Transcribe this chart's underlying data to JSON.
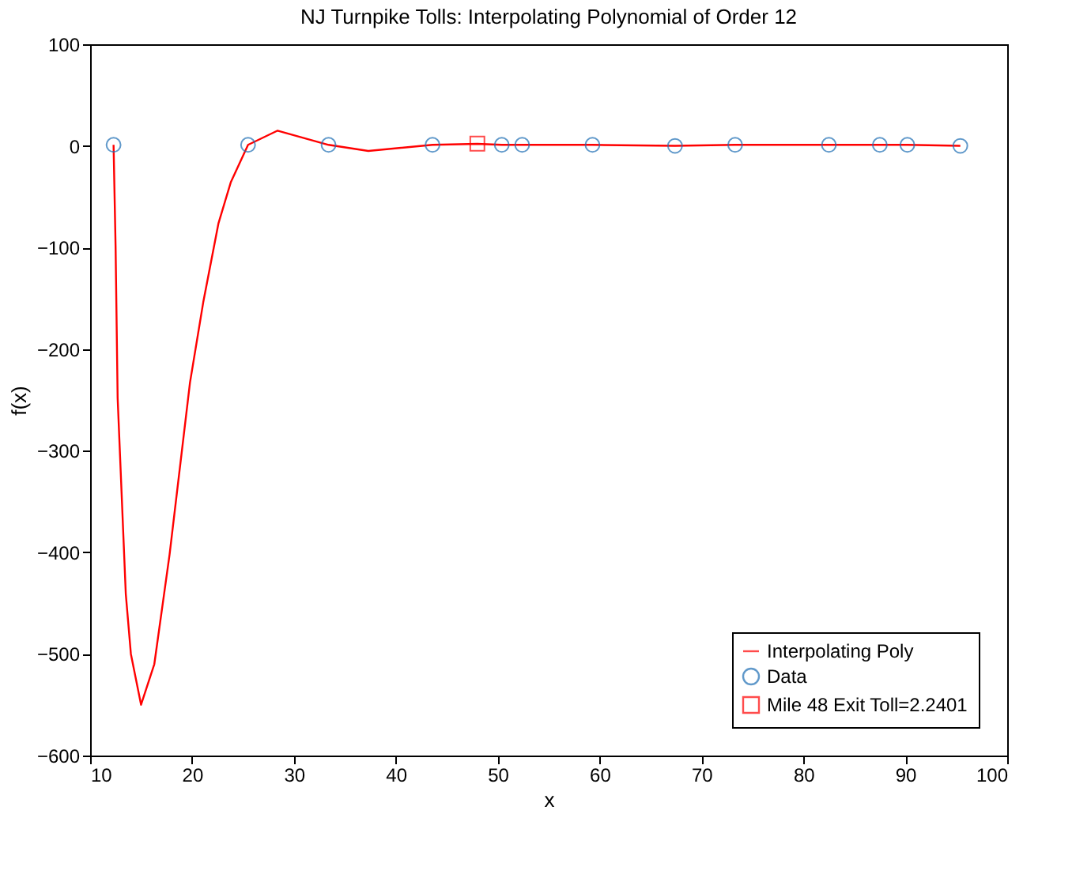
{
  "chart_data": {
    "type": "line",
    "title": "NJ Turnpike Tolls: Interpolating Polynomial of Order 12",
    "xlabel": "x",
    "ylabel": "f(x)",
    "xlim": [
      10,
      100
    ],
    "xticks": [
      10,
      20,
      30,
      40,
      50,
      60,
      70,
      80,
      90,
      100
    ],
    "ylim": [
      -600,
      100
    ],
    "yticks": [
      -600,
      -500,
      -400,
      -300,
      -200,
      -100,
      0,
      100
    ],
    "grid": false,
    "legend": "bottom right",
    "series": [
      {
        "name": "Interpolating Poly",
        "color": "#ff0000",
        "marker": "none",
        "line_style": "solid",
        "x": [
          12.3,
          12.5,
          12.7,
          13.5,
          14.0,
          15.0,
          16.3,
          17.8,
          19.8,
          21.1,
          22.6,
          23.8,
          25.5,
          28.4,
          33.4,
          37.3,
          43.6,
          48,
          50.4,
          52.4,
          59.3,
          67.4,
          73.3,
          82.5,
          87.5,
          90.2,
          95.4
        ],
        "values": [
          1,
          -100,
          -248,
          -441,
          -500,
          -550,
          -510,
          -402,
          -233,
          -154,
          -76,
          -36,
          1,
          15,
          1,
          -5,
          1,
          2,
          1,
          1,
          1,
          0,
          1,
          1,
          1,
          1,
          0
        ]
      },
      {
        "name": "Data",
        "type": "scatter",
        "color": "#1f6fb5",
        "marker": "circle",
        "x": [
          12.3,
          25.5,
          33.4,
          43.6,
          50.4,
          52.4,
          59.3,
          67.4,
          73.3,
          82.5,
          87.5,
          90.2,
          95.4
        ],
        "values": [
          1,
          1,
          1,
          1,
          1,
          1,
          1,
          0,
          1,
          1,
          1,
          1,
          0
        ]
      },
      {
        "name": "Mile 48 Exit Toll=2.2401",
        "type": "scatter",
        "color": "#ff0000",
        "marker": "square",
        "x": [
          48
        ],
        "values": [
          2.2401
        ]
      }
    ]
  }
}
